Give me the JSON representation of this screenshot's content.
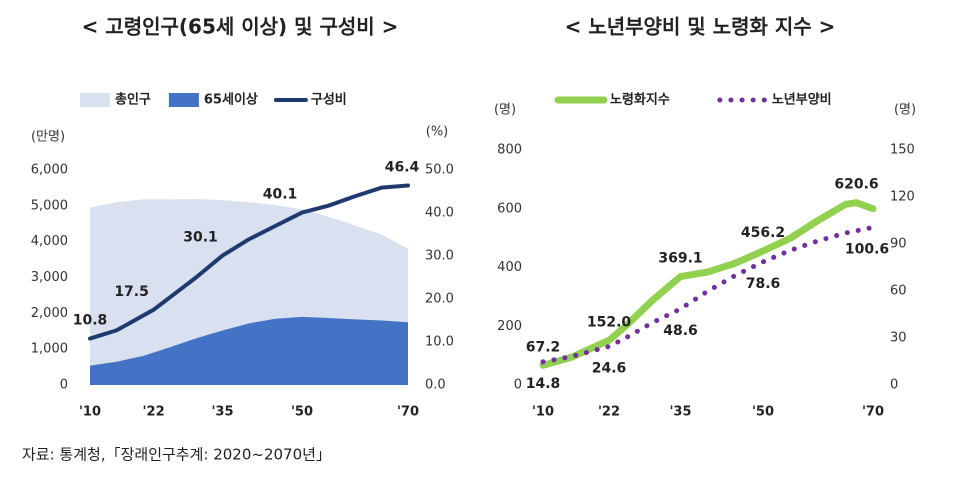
{
  "chart_data": [
    {
      "type": "area",
      "title": "< 고령인구(65세 이상) 및 구성비 >",
      "ylabel": "(만명)",
      "y2label": "(%)",
      "xlim": [
        10,
        70
      ],
      "xticks": [
        {
          "value": 10,
          "label": "'10"
        },
        {
          "value": 22,
          "label": "'22"
        },
        {
          "value": 35,
          "label": "'35"
        },
        {
          "value": 50,
          "label": "'50"
        },
        {
          "value": 70,
          "label": "'70"
        }
      ],
      "ylim": [
        0,
        6000
      ],
      "yticks": [
        0,
        {
          "value": 1000,
          "label": "1,000"
        },
        {
          "value": 2000,
          "label": "2,000"
        },
        {
          "value": 3000,
          "label": "3,000"
        },
        {
          "value": 4000,
          "label": "4,000"
        },
        {
          "value": 5000,
          "label": "5,000"
        },
        {
          "value": 6000,
          "label": "6,000"
        }
      ],
      "y2lim": [
        0,
        50
      ],
      "y2ticks": [
        {
          "value": 0,
          "label": "0.0"
        },
        {
          "value": 10,
          "label": "10.0"
        },
        {
          "value": 20,
          "label": "20.0"
        },
        {
          "value": 30,
          "label": "30.0"
        },
        {
          "value": 40,
          "label": "40.0"
        },
        {
          "value": 50,
          "label": "50.0"
        }
      ],
      "series": [
        {
          "name": "총인구",
          "type": "area",
          "color": "#d9e0f0",
          "x": [
            10,
            15,
            20,
            25,
            30,
            35,
            40,
            45,
            50,
            55,
            60,
            65,
            70
          ],
          "values": [
            4955,
            5100,
            5180,
            5180,
            5190,
            5160,
            5100,
            5020,
            4900,
            4700,
            4450,
            4200,
            3800
          ]
        },
        {
          "name": "65세이상",
          "type": "area",
          "color": "#4472c4",
          "x": [
            10,
            15,
            20,
            25,
            30,
            35,
            40,
            45,
            50,
            55,
            60,
            65,
            70
          ],
          "values": [
            540,
            650,
            810,
            1050,
            1300,
            1520,
            1720,
            1850,
            1900,
            1870,
            1830,
            1800,
            1750
          ]
        },
        {
          "name": "구성비",
          "type": "line",
          "axis": "y2",
          "color": "#1f3a6e",
          "x": [
            10,
            15,
            22,
            25,
            30,
            35,
            40,
            45,
            50,
            55,
            60,
            65,
            70
          ],
          "values": [
            10.8,
            12.7,
            17.5,
            20.3,
            25.0,
            30.1,
            33.9,
            37.0,
            40.1,
            41.7,
            43.9,
            45.9,
            46.4
          ],
          "value_labels": [
            "10.8",
            null,
            "17.5",
            null,
            null,
            "30.1",
            null,
            null,
            "40.1",
            null,
            null,
            null,
            "46.4"
          ]
        }
      ]
    },
    {
      "type": "line",
      "title": "< 노년부양비 및 노령화 지수 >",
      "ylabel": "(명)",
      "y2label": "(명)",
      "xlim": [
        10,
        70
      ],
      "xticks": [
        {
          "value": 10,
          "label": "'10"
        },
        {
          "value": 22,
          "label": "'22"
        },
        {
          "value": 35,
          "label": "'35"
        },
        {
          "value": 50,
          "label": "'50"
        },
        {
          "value": 70,
          "label": "'70"
        }
      ],
      "ylim": [
        0,
        800
      ],
      "yticks": [
        0,
        200,
        400,
        600,
        800
      ],
      "y2lim": [
        0,
        150
      ],
      "y2ticks": [
        0,
        30,
        60,
        90,
        120,
        150
      ],
      "series": [
        {
          "name": "노령화지수",
          "type": "line",
          "color": "#92d050",
          "x": [
            10,
            15,
            22,
            25,
            30,
            35,
            40,
            45,
            50,
            55,
            60,
            65,
            67,
            70
          ],
          "values": [
            67.2,
            93,
            152.0,
            200,
            290,
            369.1,
            385,
            415,
            456.2,
            500,
            560,
            615,
            620.6,
            600
          ],
          "value_labels": [
            "67.2",
            null,
            "152.0",
            null,
            null,
            "369.1",
            null,
            null,
            "456.2",
            null,
            null,
            null,
            "620.6",
            null
          ]
        },
        {
          "name": "노년부양비",
          "type": "line",
          "style": "dotted",
          "axis": "y2",
          "color": "#7030a0",
          "x": [
            10,
            15,
            22,
            25,
            30,
            35,
            40,
            45,
            50,
            55,
            60,
            65,
            70
          ],
          "values": [
            14.8,
            18,
            24.6,
            30,
            40,
            48.6,
            60,
            70,
            78.6,
            86,
            92,
            97,
            100.6
          ],
          "value_labels": [
            "14.8",
            null,
            "24.6",
            null,
            null,
            "48.6",
            null,
            null,
            "78.6",
            null,
            null,
            null,
            "100.6"
          ]
        }
      ]
    }
  ],
  "source": "자료: 통계청,「장래인구추계: 2020~2070년」"
}
